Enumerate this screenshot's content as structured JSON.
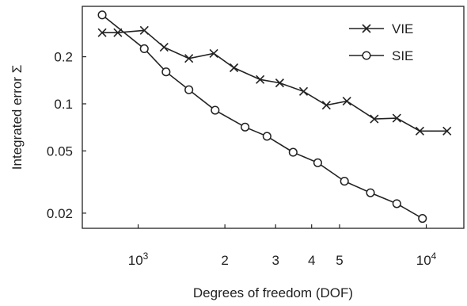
{
  "chart_data": {
    "type": "line",
    "xlabel": "Degrees of freedom (DOF)",
    "ylabel": "Integrated error Σ",
    "xscale": "log",
    "yscale": "log",
    "xlim": [
      640,
      13500
    ],
    "ylim": [
      0.016,
      0.42
    ],
    "grid": false,
    "legend_position": "top-right",
    "x_ticks": [
      {
        "value": 1000,
        "label": "10",
        "sup": "3"
      },
      {
        "value": 2000,
        "label": "2",
        "sup": ""
      },
      {
        "value": 3000,
        "label": "3",
        "sup": ""
      },
      {
        "value": 4000,
        "label": "4",
        "sup": ""
      },
      {
        "value": 5000,
        "label": "5",
        "sup": ""
      },
      {
        "value": 10000,
        "label": "10",
        "sup": "4"
      }
    ],
    "y_ticks": [
      {
        "value": 0.02,
        "label": "0.02"
      },
      {
        "value": 0.05,
        "label": "0.05"
      },
      {
        "value": 0.1,
        "label": "0.1"
      },
      {
        "value": 0.2,
        "label": "0.2"
      }
    ],
    "series": [
      {
        "name": "VIE",
        "marker": "x",
        "x": [
          750,
          850,
          1050,
          1230,
          1500,
          1830,
          2150,
          2650,
          3100,
          3750,
          4500,
          5300,
          6600,
          7900,
          9500,
          11800
        ],
        "y": [
          0.285,
          0.285,
          0.295,
          0.23,
          0.195,
          0.21,
          0.17,
          0.143,
          0.136,
          0.12,
          0.098,
          0.104,
          0.08,
          0.081,
          0.067,
          0.067
        ]
      },
      {
        "name": "SIE",
        "marker": "o",
        "x": [
          750,
          1050,
          1250,
          1500,
          1850,
          2350,
          2800,
          3450,
          4200,
          5200,
          6400,
          7900,
          9700
        ],
        "y": [
          0.37,
          0.225,
          0.16,
          0.123,
          0.091,
          0.071,
          0.062,
          0.049,
          0.042,
          0.032,
          0.027,
          0.023,
          0.0185
        ]
      }
    ]
  }
}
